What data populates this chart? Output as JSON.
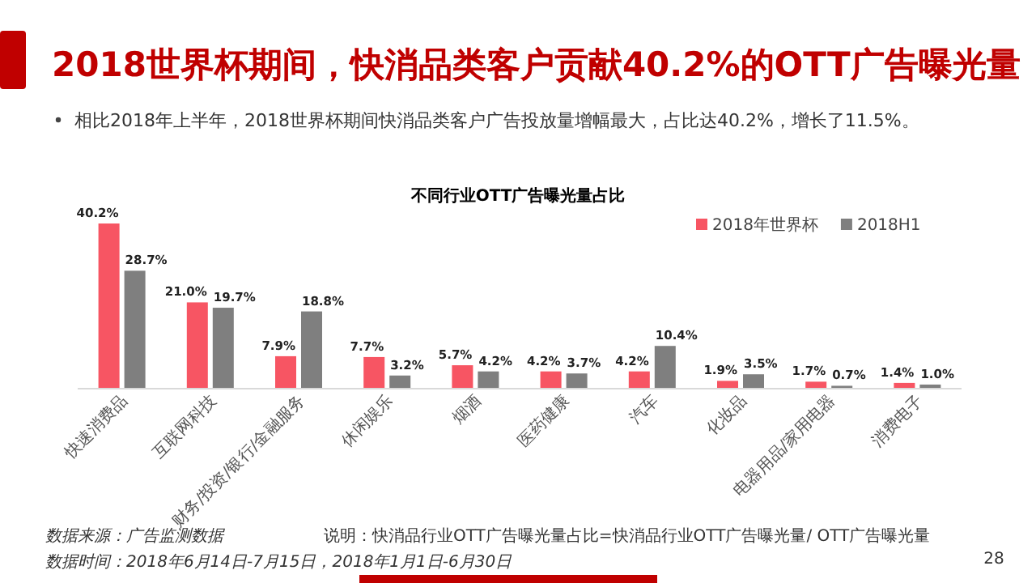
{
  "chart_data": {
    "type": "bar",
    "title": "2018世界杯期间，快消品类客户贡献40.2%的OTT广告曝光量",
    "subtitle": "相比2018年上半年，2018世界杯期间快消品类客户广告投放量增幅最大，占比达40.2%，增长了11.5%。",
    "annotations": [
      "不同行业OTT广告曝光量占比",
      "数据来源：广告监测数据",
      "数据时间：2018年6月14日-7月15日，2018年1月1日-6月30日",
      "说明：快消品行业OTT广告曝光量占比=快消品行业OTT广告曝光量/ OTT广告曝光量",
      "28"
    ],
    "categories": [
      "快速消费品",
      "互联网科技",
      "财务/投资/银行/金融服务",
      "休闲娱乐",
      "烟酒",
      "医药健康",
      "汽车",
      "化妆品",
      "电器用品/家用电器",
      "消费电子"
    ],
    "series": [
      {
        "name": "2018年世界杯",
        "color": "#f75563",
        "values": [
          40.2,
          21.0,
          7.9,
          7.7,
          5.7,
          4.2,
          4.2,
          1.9,
          1.7,
          1.4
        ],
        "value_labels": [
          "40.2%",
          "21.0%",
          "7.9%",
          "7.7%",
          "5.7%",
          "4.2%",
          "4.2%",
          "1.9%",
          "1.7%",
          "1.4%"
        ]
      },
      {
        "name": "2018H1",
        "color": "#7f7f7f",
        "values": [
          28.7,
          19.7,
          18.8,
          3.2,
          4.2,
          3.7,
          10.4,
          3.5,
          0.7,
          1.0
        ],
        "value_labels": [
          "28.7%",
          "19.7%",
          "18.8%",
          "3.2%",
          "4.2%",
          "3.7%",
          "10.4%",
          "3.5%",
          "0.7%",
          "1.0%"
        ]
      }
    ],
    "legend": "top right"
  }
}
